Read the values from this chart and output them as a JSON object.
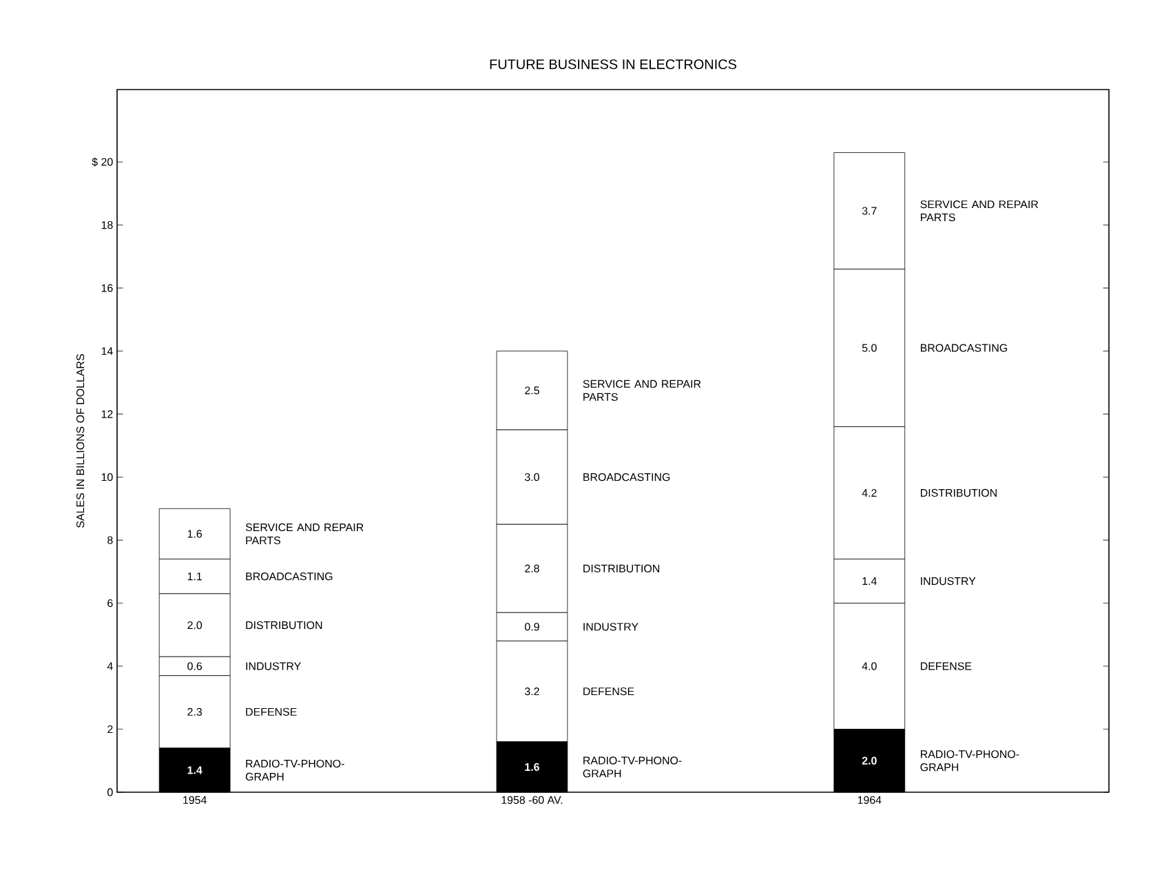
{
  "chart_data": {
    "type": "bar",
    "stacked": true,
    "title": "FUTURE BUSINESS IN ELECTRONICS",
    "ylabel": "SALES IN BILLIONS OF DOLLARS",
    "categories": [
      "1954",
      "1958 -60 AV.",
      "1964"
    ],
    "ylim": [
      0,
      22.3
    ],
    "yticks": [
      0,
      2,
      4,
      6,
      8,
      10,
      12,
      14,
      16,
      18,
      {
        "value": 20,
        "label": "$ 20"
      }
    ],
    "series": [
      {
        "name": "RADIO-TV-PHONO-GRAPH",
        "color": "#000000",
        "values": [
          1.4,
          1.6,
          2.0
        ],
        "value_labels": [
          "1.4",
          "1.6",
          "2.0"
        ]
      },
      {
        "name": "DEFENSE",
        "color": "#ffffff",
        "values": [
          2.3,
          3.2,
          4.0
        ],
        "value_labels": [
          "2.3",
          "3.2",
          "4.0"
        ]
      },
      {
        "name": "INDUSTRY",
        "color": "#ffffff",
        "values": [
          0.6,
          0.9,
          1.4
        ],
        "value_labels": [
          "0.6",
          "0.9",
          "1.4"
        ]
      },
      {
        "name": "DISTRIBUTION",
        "color": "#ffffff",
        "values": [
          2.0,
          2.8,
          4.2
        ],
        "value_labels": [
          "2.0",
          "2.8",
          "4.2"
        ]
      },
      {
        "name": "BROADCASTING",
        "color": "#ffffff",
        "values": [
          1.1,
          3.0,
          5.0
        ],
        "value_labels": [
          "1.1",
          "3.0",
          "5.0"
        ]
      },
      {
        "name": "SERVICE AND REPAIR PARTS",
        "color": "#ffffff",
        "values": [
          1.6,
          2.5,
          3.7
        ],
        "value_labels": [
          "1.6",
          "2.5",
          "3.7"
        ]
      }
    ],
    "legend": false
  }
}
